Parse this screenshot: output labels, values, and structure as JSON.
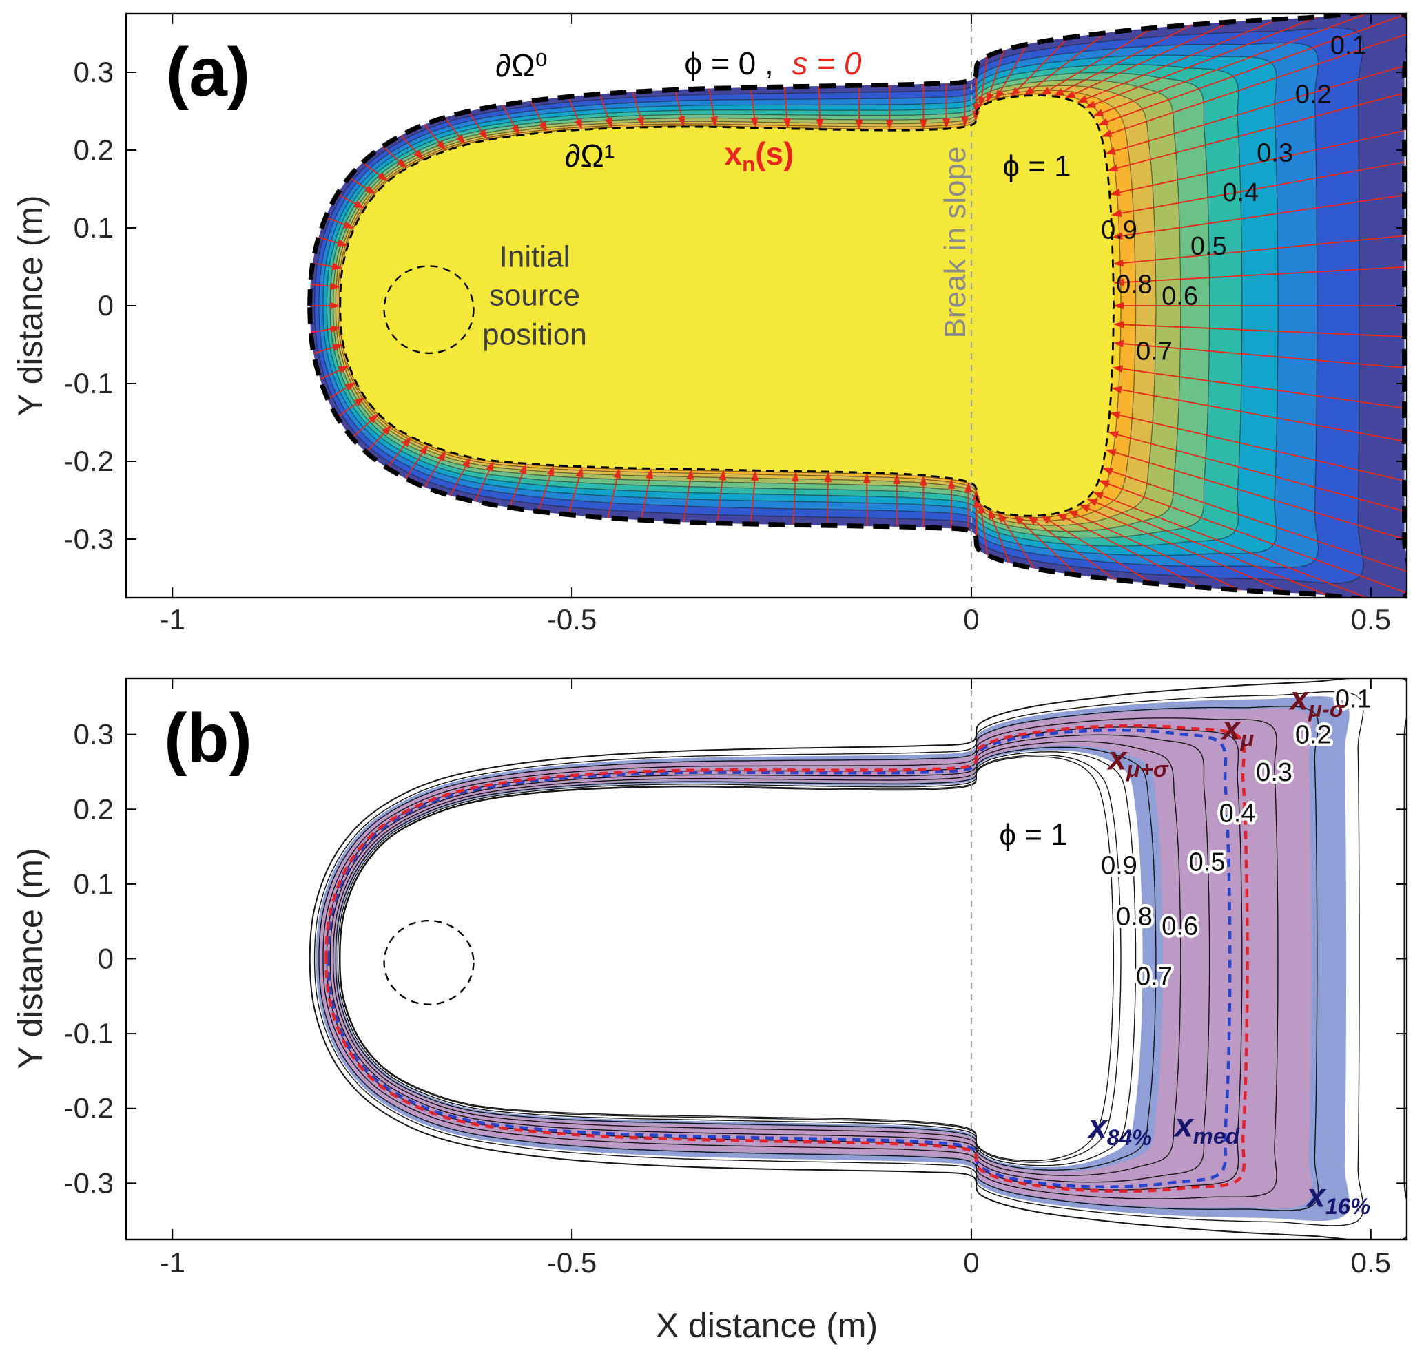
{
  "axes": {
    "xlabel": "X distance  (m)",
    "ylabel": "Y distance  (m)",
    "x_tick_labels": [
      "-1",
      "-0.5",
      "0",
      "0.5"
    ],
    "x_tick_values": [
      -1,
      -0.5,
      0,
      0.5
    ],
    "y_tick_labels": [
      "0.3",
      "0.2",
      "0.1",
      "0",
      "-0.1",
      "-0.2",
      "-0.3"
    ],
    "y_tick_values": [
      0.3,
      0.2,
      0.1,
      0,
      -0.1,
      -0.2,
      -0.3
    ]
  },
  "panel_a": {
    "letter": "(a)",
    "annotations": {
      "outer_boundary": "∂Ω⁰",
      "phi_zero": "ϕ = 0 ,",
      "s_zero": "s = 0",
      "inner_boundary": "∂Ω¹",
      "xn_main": "x",
      "xn_sub": "n",
      "xn_suffix": "(s)",
      "source_line1": "Initial",
      "source_line2": "source",
      "source_line3": "position",
      "break_in_slope": "Break in slope",
      "phi_one": "ϕ = 1"
    }
  },
  "panel_b": {
    "letter": "(b)",
    "phi_one": "ϕ = 1",
    "stats": [
      {
        "main": "x",
        "sub": "μ+σ"
      },
      {
        "main": "x",
        "sub": "μ"
      },
      {
        "main": "x",
        "sub": "μ-σ"
      },
      {
        "main": "x",
        "sub": "84%"
      },
      {
        "main": "x",
        "sub": "med"
      },
      {
        "main": "x",
        "sub": "16%"
      }
    ]
  },
  "chart_data": {
    "type": "contour",
    "title": "",
    "xlim": [
      -1.058,
      0.545
    ],
    "ylim": [
      -0.3752,
      0.3752
    ],
    "level_gamma": 1.6,
    "phi_levels": [
      0.1,
      0.2,
      0.3,
      0.4,
      0.5,
      0.6,
      0.7,
      0.8,
      0.9
    ],
    "break_line_x": 0,
    "source_circle": {
      "cx": -0.679,
      "cy": -0.005,
      "r": 0.056
    },
    "inner_boundary_phi1": [
      [
        -0.79,
        0.0
      ],
      [
        -0.785,
        0.06
      ],
      [
        -0.765,
        0.115
      ],
      [
        -0.73,
        0.16
      ],
      [
        -0.68,
        0.19
      ],
      [
        -0.62,
        0.21
      ],
      [
        -0.54,
        0.222
      ],
      [
        -0.45,
        0.228
      ],
      [
        -0.35,
        0.23
      ],
      [
        -0.25,
        0.228
      ],
      [
        -0.15,
        0.226
      ],
      [
        -0.06,
        0.226
      ],
      [
        0.0,
        0.232
      ],
      [
        0.008,
        0.252
      ],
      [
        0.03,
        0.264
      ],
      [
        0.07,
        0.27
      ],
      [
        0.11,
        0.268
      ],
      [
        0.14,
        0.256
      ],
      [
        0.158,
        0.232
      ],
      [
        0.168,
        0.19
      ],
      [
        0.174,
        0.13
      ],
      [
        0.177,
        0.06
      ],
      [
        0.178,
        0.0
      ],
      [
        0.177,
        -0.06
      ],
      [
        0.174,
        -0.125
      ],
      [
        0.168,
        -0.185
      ],
      [
        0.158,
        -0.228
      ],
      [
        0.14,
        -0.252
      ],
      [
        0.11,
        -0.266
      ],
      [
        0.07,
        -0.27
      ],
      [
        0.03,
        -0.264
      ],
      [
        0.008,
        -0.25
      ],
      [
        0.0,
        -0.228
      ],
      [
        -0.06,
        -0.218
      ],
      [
        -0.15,
        -0.214
      ],
      [
        -0.25,
        -0.212
      ],
      [
        -0.35,
        -0.21
      ],
      [
        -0.45,
        -0.208
      ],
      [
        -0.54,
        -0.204
      ],
      [
        -0.62,
        -0.196
      ],
      [
        -0.68,
        -0.178
      ],
      [
        -0.73,
        -0.15
      ],
      [
        -0.765,
        -0.108
      ],
      [
        -0.785,
        -0.055
      ]
    ],
    "outer_boundary_phi0": [
      [
        -0.828,
        0.0
      ],
      [
        -0.822,
        0.068
      ],
      [
        -0.8,
        0.132
      ],
      [
        -0.762,
        0.184
      ],
      [
        -0.708,
        0.222
      ],
      [
        -0.645,
        0.246
      ],
      [
        -0.56,
        0.262
      ],
      [
        -0.465,
        0.272
      ],
      [
        -0.36,
        0.278
      ],
      [
        -0.255,
        0.281
      ],
      [
        -0.15,
        0.283
      ],
      [
        -0.06,
        0.285
      ],
      [
        0.0,
        0.29
      ],
      [
        0.012,
        0.316
      ],
      [
        0.07,
        0.336
      ],
      [
        0.18,
        0.352
      ],
      [
        0.3,
        0.363
      ],
      [
        0.42,
        0.37
      ],
      [
        0.542,
        0.374
      ],
      [
        0.542,
        0.3
      ],
      [
        0.542,
        0.205
      ],
      [
        0.542,
        0.1
      ],
      [
        0.542,
        0.0
      ],
      [
        0.542,
        -0.1
      ],
      [
        0.542,
        -0.205
      ],
      [
        0.542,
        -0.3
      ],
      [
        0.542,
        -0.374
      ],
      [
        0.42,
        -0.37
      ],
      [
        0.3,
        -0.363
      ],
      [
        0.18,
        -0.352
      ],
      [
        0.07,
        -0.336
      ],
      [
        0.012,
        -0.316
      ],
      [
        0.0,
        -0.29
      ],
      [
        -0.06,
        -0.285
      ],
      [
        -0.15,
        -0.283
      ],
      [
        -0.255,
        -0.281
      ],
      [
        -0.36,
        -0.278
      ],
      [
        -0.465,
        -0.272
      ],
      [
        -0.56,
        -0.262
      ],
      [
        -0.645,
        -0.246
      ],
      [
        -0.708,
        -0.222
      ],
      [
        -0.762,
        -0.184
      ],
      [
        -0.8,
        -0.132
      ],
      [
        -0.822,
        -0.068
      ]
    ],
    "panel_a": {
      "interior_color": "#f4e83a",
      "band_colors": [
        "#f7d32e",
        "#f8b42f",
        "#ddbb4a",
        "#a9bf60",
        "#6cc189",
        "#2fb9a8",
        "#12a4cb",
        "#2383d6",
        "#3059cf",
        "#44459c"
      ],
      "streamline_color": "#e42a1a",
      "streamline_count": 100,
      "contour_labels": [
        {
          "text": "0.1",
          "x": 0.472,
          "y": 0.335
        },
        {
          "text": "0.2",
          "x": 0.428,
          "y": 0.272
        },
        {
          "text": "0.3",
          "x": 0.38,
          "y": 0.197
        },
        {
          "text": "0.4",
          "x": 0.337,
          "y": 0.146
        },
        {
          "text": "0.5",
          "x": 0.297,
          "y": 0.077
        },
        {
          "text": "0.6",
          "x": 0.261,
          "y": 0.013
        },
        {
          "text": "0.7",
          "x": 0.229,
          "y": -0.058
        },
        {
          "text": "0.8",
          "x": 0.204,
          "y": 0.028
        },
        {
          "text": "0.9",
          "x": 0.185,
          "y": 0.098
        }
      ]
    },
    "panel_b": {
      "blue_band": {
        "t_inner": 0.1,
        "t_outer": 0.8,
        "color": "#8a9ad3",
        "opacity": 0.95
      },
      "pink_band": {
        "t_inner": 0.17,
        "t_outer": 0.68,
        "color": "#c897c0",
        "opacity": 0.8
      },
      "median_contour": {
        "t": 0.46,
        "color": "#e0242c"
      },
      "percentile_contour": {
        "t": 0.4,
        "color": "#2743c9"
      },
      "contour_labels": [
        {
          "text": "0.1",
          "x": 0.478,
          "y": 0.348
        },
        {
          "text": "0.2",
          "x": 0.428,
          "y": 0.3
        },
        {
          "text": "0.3",
          "x": 0.379,
          "y": 0.25
        },
        {
          "text": "0.4",
          "x": 0.333,
          "y": 0.195
        },
        {
          "text": "0.5",
          "x": 0.295,
          "y": 0.13
        },
        {
          "text": "0.6",
          "x": 0.261,
          "y": 0.044
        },
        {
          "text": "0.7",
          "x": 0.229,
          "y": -0.023
        },
        {
          "text": "0.8",
          "x": 0.204,
          "y": 0.057
        },
        {
          "text": "0.9",
          "x": 0.185,
          "y": 0.125
        }
      ]
    }
  }
}
